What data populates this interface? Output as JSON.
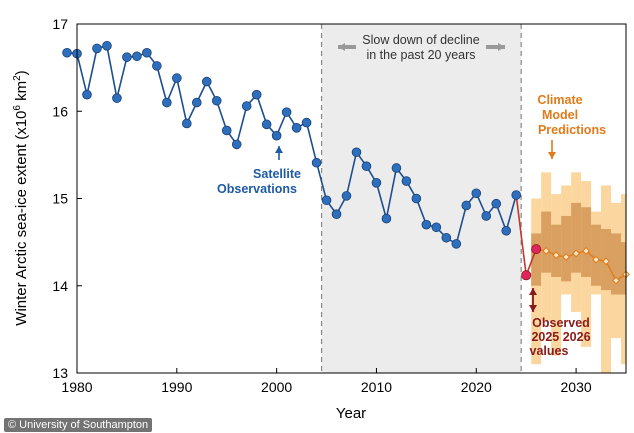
{
  "chart_data": {
    "type": "line",
    "ylabel": "Winter Arctic sea-ice extent (x10",
    "ylabel_sup": "6",
    "ylabel_unit": " km",
    "ylabel_sup2": "2",
    "ylabel_end": ")",
    "xlabel": "Year",
    "xlim": [
      1980,
      2035
    ],
    "ylim": [
      13,
      17
    ],
    "xticks": [
      1980,
      1990,
      2000,
      2010,
      2020,
      2030
    ],
    "yticks": [
      13,
      14,
      15,
      16,
      17
    ],
    "grid": false,
    "shaded_period": {
      "x": [
        2004.5,
        2024.5
      ],
      "label_line1": "Slow down of decline",
      "label_line2": "in the past 20 years"
    },
    "series": [
      {
        "name": "Satellite Observations",
        "label_lines": [
          "Satellite",
          "Observations"
        ],
        "color": "#2e6fbd",
        "line_color": "#1f4e8f",
        "x": [
          1979,
          1980,
          1981,
          1982,
          1983,
          1984,
          1985,
          1986,
          1987,
          1988,
          1989,
          1990,
          1991,
          1992,
          1993,
          1994,
          1995,
          1996,
          1997,
          1998,
          1999,
          2000,
          2001,
          2002,
          2003,
          2004,
          2005,
          2006,
          2007,
          2008,
          2009,
          2010,
          2011,
          2012,
          2013,
          2014,
          2015,
          2016,
          2017,
          2018,
          2019,
          2020,
          2021,
          2022,
          2023,
          2024
        ],
        "y": [
          16.67,
          16.66,
          16.19,
          16.72,
          16.75,
          16.15,
          16.62,
          16.63,
          16.67,
          16.52,
          16.1,
          16.38,
          15.86,
          16.1,
          16.34,
          16.12,
          15.78,
          15.62,
          16.06,
          16.19,
          15.85,
          15.72,
          15.99,
          15.81,
          15.87,
          15.41,
          14.98,
          14.82,
          15.03,
          15.53,
          15.37,
          15.18,
          14.77,
          15.35,
          15.2,
          15.0,
          14.7,
          14.67,
          14.55,
          14.48,
          14.92,
          15.06,
          14.8,
          14.94,
          14.63,
          15.04
        ]
      },
      {
        "name": "Observed 2025 2026 values",
        "label_lines": [
          "Observed",
          "2025 2026",
          "values"
        ],
        "color": "#e0245e",
        "line_color": "#c0392b",
        "x": [
          2025,
          2026
        ],
        "y": [
          14.12,
          14.42
        ]
      },
      {
        "name": "Climate Model Predictions",
        "label_lines": [
          "Climate",
          "Model",
          "Predictions"
        ],
        "color": "#e07b1a",
        "x": [
          2026,
          2027,
          2028,
          2029,
          2030,
          2031,
          2032,
          2033,
          2034,
          2035
        ],
        "y": [
          14.42,
          14.4,
          14.35,
          14.33,
          14.37,
          14.4,
          14.3,
          14.28,
          14.06,
          14.13
        ],
        "band_outer": {
          "color": "#fbd79f",
          "x": [
            2025.5,
            2026.5,
            2027.5,
            2028.5,
            2029.5,
            2030.5,
            2031.5,
            2032.5,
            2033.5,
            2034.5,
            2035
          ],
          "low": [
            13.1,
            13.6,
            13.2,
            13.9,
            13.7,
            13.3,
            13.9,
            13.0,
            13.4,
            13.1,
            13.2
          ],
          "high": [
            15.0,
            15.3,
            15.05,
            15.15,
            15.3,
            15.2,
            14.85,
            15.15,
            14.95,
            15.05,
            14.9
          ]
        },
        "band_inner": {
          "color": "#d9a062",
          "x": [
            2025.5,
            2026.5,
            2027.5,
            2028.5,
            2029.5,
            2030.5,
            2031.5,
            2032.5,
            2033.5,
            2034.5,
            2035
          ],
          "low": [
            14.0,
            14.15,
            14.1,
            14.05,
            14.15,
            14.1,
            14.0,
            13.95,
            13.9,
            13.9,
            13.95
          ],
          "high": [
            14.6,
            14.85,
            14.7,
            14.8,
            14.95,
            14.9,
            14.7,
            14.65,
            14.6,
            14.5,
            14.55
          ]
        }
      }
    ],
    "colors": {
      "axis": "#000000",
      "shade": "#ececec",
      "dashed": "#888888",
      "arrow_grey": "#999999",
      "annotation_dark_red": "#8b1a1a",
      "annotation_blue": "#1f5aa6",
      "annotation_orange": "#e07b1a"
    }
  },
  "credit": "© University of Southampton"
}
